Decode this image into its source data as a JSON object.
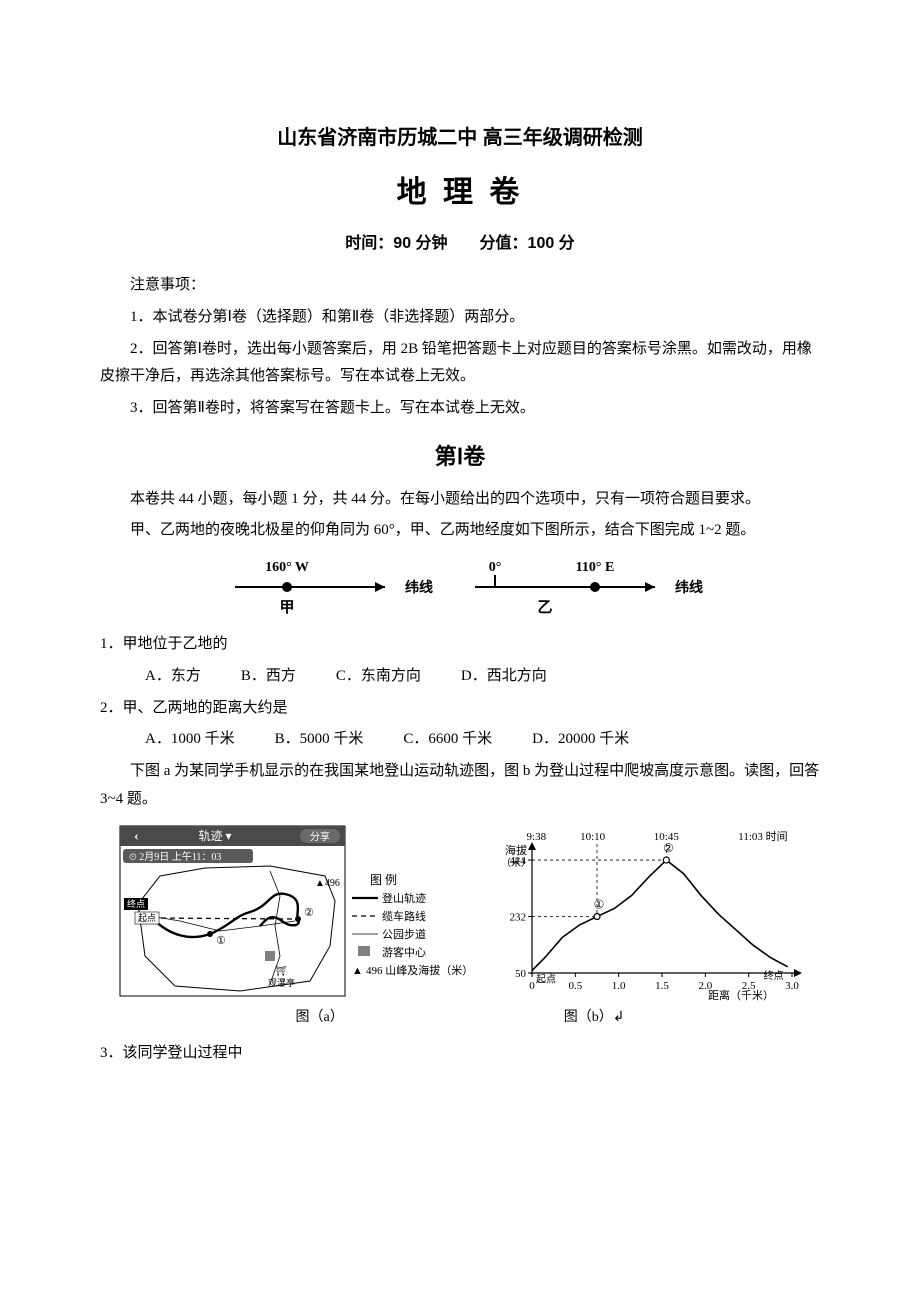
{
  "header": {
    "line1": "山东省济南市历城二中 高三年级调研检测",
    "line2": "地 理 卷",
    "time_score": "时间：90 分钟　　分值：100 分"
  },
  "notes": {
    "heading": "注意事项：",
    "n1": "1．本试卷分第Ⅰ卷（选择题）和第Ⅱ卷（非选择题）两部分。",
    "n2": "2．回答第Ⅰ卷时，选出每小题答案后，用 2B 铅笔把答题卡上对应题目的答案标号涂黑。如需改动，用橡皮擦干净后，再选涂其他答案标号。写在本试卷上无效。",
    "n3": "3．回答第Ⅱ卷时，将答案写在答题卡上。写在本试卷上无效。"
  },
  "section1": {
    "heading": "第Ⅰ卷",
    "intro": "本卷共 44 小题，每小题 1 分，共 44 分。在每小题给出的四个选项中，只有一项符合题目要求。",
    "preface1": "甲、乙两地的夜晚北极星的仰角同为 60°，甲、乙两地经度如下图所示，结合下图完成 1~2 题。"
  },
  "fig1": {
    "left_label": "160° W",
    "right_label": "110° E",
    "zero_label": "0°",
    "latline_label": "纬线",
    "jia": "甲",
    "yi": "乙"
  },
  "q1": {
    "stem": "1．甲地位于乙地的",
    "a": "A．东方",
    "b": "B．西方",
    "c": "C．东南方向",
    "d": "D．西北方向"
  },
  "q2": {
    "stem": "2．甲、乙两地的距离大约是",
    "a": "A．1000 千米",
    "b": "B．5000 千米",
    "c": "C．6600 千米",
    "d": "D．20000 千米"
  },
  "preface2": "下图 a 为某同学手机显示的在我国某地登山运动轨迹图，图 b 为登山过程中爬坡高度示意图。读图，回答 3~4 题。",
  "fig2": {
    "app_title": "轨迹 ▾",
    "share": "分享",
    "timestamp": "⏲ 2月9日 上午11：03",
    "start": "起点",
    "end": "终点",
    "pavilion": "观瀑亭",
    "peak_label": "▲496",
    "legend_title": "图 例",
    "legend_items": {
      "trail": "登山轨迹",
      "cable": "缆车路线",
      "path": "公园步道",
      "visitor": "游客中心",
      "peak": "496 山峰及海拔（米）"
    },
    "cap_a": "图（a）",
    "cap_b": "图（b）↲"
  },
  "chart_b": {
    "type": "line",
    "x_label": "距离（千米）",
    "y_label_top": "海拔",
    "y_label_mid": "（米）",
    "xlim": [
      0,
      3.0
    ],
    "x_ticks": [
      0,
      0.5,
      1.0,
      1.5,
      2.0,
      2.5,
      3.0
    ],
    "y_ticks": [
      50,
      232,
      414
    ],
    "top_times": [
      "9:38",
      "10:10",
      "10:45",
      "11:03 时间"
    ],
    "top_time_x": [
      0.05,
      0.7,
      1.55,
      2.95
    ],
    "points": [
      {
        "x": 0.0,
        "y": 58
      },
      {
        "x": 0.15,
        "y": 100
      },
      {
        "x": 0.35,
        "y": 165
      },
      {
        "x": 0.55,
        "y": 205
      },
      {
        "x": 0.75,
        "y": 232
      },
      {
        "x": 0.95,
        "y": 258
      },
      {
        "x": 1.15,
        "y": 300
      },
      {
        "x": 1.35,
        "y": 360
      },
      {
        "x": 1.55,
        "y": 414
      },
      {
        "x": 1.75,
        "y": 370
      },
      {
        "x": 1.95,
        "y": 300
      },
      {
        "x": 2.15,
        "y": 240
      },
      {
        "x": 2.35,
        "y": 190
      },
      {
        "x": 2.55,
        "y": 140
      },
      {
        "x": 2.75,
        "y": 100
      },
      {
        "x": 2.95,
        "y": 70
      }
    ],
    "mark1": {
      "x": 0.75,
      "label": "①"
    },
    "mark2": {
      "x": 1.55,
      "label": "②"
    },
    "start_label": "起点",
    "end_label": "终点",
    "colors": {
      "axis": "#000000",
      "line": "#000000",
      "bg": "#ffffff",
      "label": "#000000"
    },
    "fontsize": 11
  },
  "q3": {
    "stem": "3．该同学登山过程中"
  }
}
